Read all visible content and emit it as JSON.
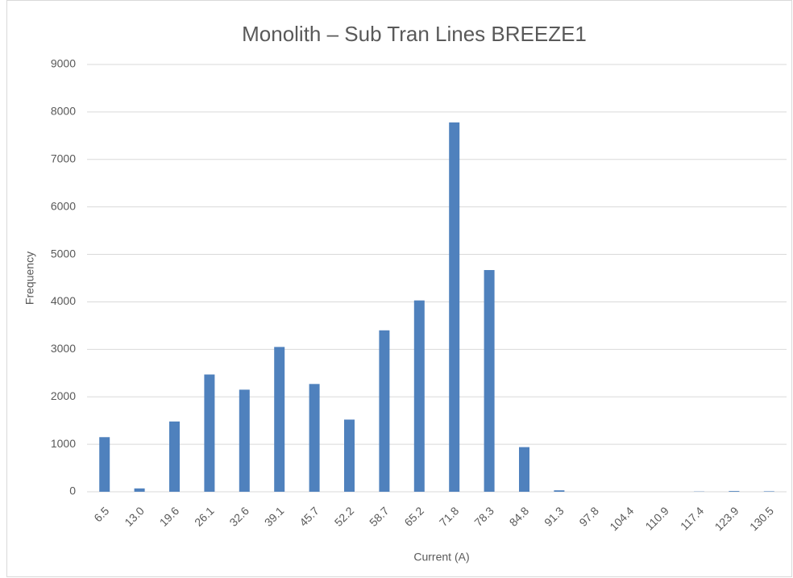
{
  "chart_data": {
    "type": "bar",
    "title": "Monolith – Sub Tran Lines BREEZE1",
    "x_label": "Current  (A)",
    "y_label": "Frequency",
    "categories": [
      "6.5",
      "13.0",
      "19.6",
      "26.1",
      "32.6",
      "39.1",
      "45.7",
      "52.2",
      "58.7",
      "65.2",
      "71.8",
      "78.3",
      "84.8",
      "91.3",
      "97.8",
      "104.4",
      "110.9",
      "117.4",
      "123.9",
      "130.5"
    ],
    "values": [
      1150,
      70,
      1480,
      2470,
      2150,
      3050,
      2270,
      1520,
      3400,
      4030,
      7780,
      4670,
      940,
      30,
      0,
      0,
      0,
      5,
      15,
      10
    ],
    "color": "#4f81bd",
    "ylim": [
      0,
      9000
    ],
    "yticks": [
      0,
      1000,
      2000,
      3000,
      4000,
      5000,
      6000,
      7000,
      8000,
      9000
    ],
    "grid": true
  }
}
